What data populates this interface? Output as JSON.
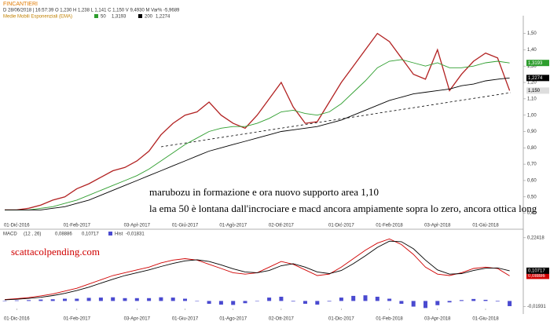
{
  "chart_data": [
    {
      "type": "line",
      "title": "FINCANTIERI",
      "subtitle": "D 28/06/2018 | 16:57:39   O 1,230   H 1,238   L 1,141   C 1,150   V 9,4930 M   Var% -5,9689",
      "legend_title": "Medie Mobili Esponenziali (EMA)",
      "categories": [
        null,
        "01-Dic-2016",
        null,
        null,
        null,
        null,
        "01-Feb-2017",
        null,
        null,
        null,
        null,
        "03-Apr-2017",
        null,
        null,
        null,
        "01-Giu-2017",
        null,
        null,
        null,
        "01-Ago-2017",
        null,
        null,
        null,
        "02-Ott-2017",
        null,
        null,
        null,
        null,
        "01-Dic-2017",
        null,
        null,
        null,
        "01-Feb-2018",
        null,
        null,
        null,
        "03-Apr-2018",
        null,
        null,
        null,
        "01-Giu-2018",
        null,
        null
      ],
      "series": [
        {
          "color": "#b22222",
          "last_label": "1,150",
          "values": [
            0.42,
            0.42,
            0.43,
            0.45,
            0.48,
            0.5,
            0.55,
            0.58,
            0.62,
            0.66,
            0.68,
            0.72,
            0.78,
            0.88,
            0.95,
            1.0,
            1.02,
            1.08,
            1.0,
            0.95,
            0.92,
            1.0,
            1.1,
            1.2,
            1.05,
            0.95,
            0.96,
            1.08,
            1.2,
            1.3,
            1.4,
            1.5,
            1.45,
            1.35,
            1.25,
            1.22,
            1.4,
            1.15,
            1.25,
            1.33,
            1.38,
            1.35,
            1.15
          ]
        },
        {
          "name": "50",
          "last_label": "1,3193",
          "color": "#2e9e2e",
          "values": [
            0.42,
            0.42,
            0.42,
            0.43,
            0.44,
            0.46,
            0.48,
            0.51,
            0.54,
            0.57,
            0.6,
            0.63,
            0.67,
            0.72,
            0.77,
            0.82,
            0.86,
            0.9,
            0.92,
            0.93,
            0.93,
            0.95,
            0.98,
            1.02,
            1.03,
            1.01,
            1.0,
            1.02,
            1.07,
            1.14,
            1.21,
            1.29,
            1.33,
            1.34,
            1.32,
            1.3,
            1.32,
            1.29,
            1.29,
            1.3,
            1.32,
            1.33,
            1.3193
          ]
        },
        {
          "name": "200",
          "last_label": "1,2274",
          "color": "#000000",
          "values": [
            0.42,
            0.42,
            0.42,
            0.42,
            0.43,
            0.44,
            0.46,
            0.48,
            0.51,
            0.54,
            0.57,
            0.6,
            0.63,
            0.66,
            0.69,
            0.72,
            0.75,
            0.78,
            0.8,
            0.82,
            0.84,
            0.86,
            0.88,
            0.9,
            0.91,
            0.92,
            0.93,
            0.95,
            0.97,
            1.0,
            1.03,
            1.06,
            1.09,
            1.11,
            1.13,
            1.14,
            1.15,
            1.16,
            1.18,
            1.19,
            1.21,
            1.22,
            1.2274
          ]
        }
      ],
      "ylim": [
        0.35,
        1.57
      ],
      "yticks": [
        {
          "value": 0.4,
          "label": "0,40"
        },
        {
          "value": 0.5,
          "label": "0,50"
        },
        {
          "value": 0.6,
          "label": "0,60"
        },
        {
          "value": 0.7,
          "label": "0,70"
        },
        {
          "value": 0.8,
          "label": "0,80"
        },
        {
          "value": 0.9,
          "label": "0,90"
        },
        {
          "value": 1.0,
          "label": "1,00"
        },
        {
          "value": 1.1,
          "label": "1,10"
        },
        {
          "value": 1.2,
          "label": "1,20"
        },
        {
          "value": 1.3,
          "label": "1,30"
        },
        {
          "value": 1.4,
          "label": "1,40"
        },
        {
          "value": 1.5,
          "label": "1,50"
        }
      ],
      "annotations": [
        "marubozu in formazione e ora nuovo supporto area 1,10",
        "la ema 50 è lontana dall'incrociare e macd ancora ampiamente sopra lo zero, ancora ottica long"
      ]
    },
    {
      "type": "line",
      "title": "MACD",
      "subtitle": "(12 , 26)",
      "categories": [
        null,
        "01-Dic-2016",
        null,
        null,
        null,
        null,
        "01-Feb-2017",
        null,
        null,
        null,
        null,
        "03-Apr-2017",
        null,
        null,
        null,
        "01-Giu-2017",
        null,
        null,
        null,
        "01-Ago-2017",
        null,
        null,
        null,
        "02-Ott-2017",
        null,
        null,
        null,
        null,
        "01-Dic-2017",
        null,
        null,
        null,
        "01-Feb-2018",
        null,
        null,
        null,
        "03-Apr-2018",
        null,
        null,
        null,
        "01-Giu-2018",
        null,
        null
      ],
      "series": [
        {
          "last_label": "0,08886",
          "color": "#d00000",
          "values": [
            0.005,
            0.008,
            0.012,
            0.018,
            0.025,
            0.035,
            0.045,
            0.06,
            0.075,
            0.09,
            0.1,
            0.11,
            0.12,
            0.135,
            0.145,
            0.15,
            0.145,
            0.13,
            0.115,
            0.1,
            0.095,
            0.1,
            0.12,
            0.14,
            0.13,
            0.11,
            0.09,
            0.095,
            0.12,
            0.15,
            0.18,
            0.205,
            0.22,
            0.2,
            0.165,
            0.12,
            0.095,
            0.09,
            0.1,
            0.115,
            0.12,
            0.115,
            0.08886
          ]
        },
        {
          "last_label": "0,10717",
          "color": "#000000",
          "values": [
            0.004,
            0.006,
            0.009,
            0.013,
            0.019,
            0.027,
            0.037,
            0.049,
            0.063,
            0.077,
            0.09,
            0.1,
            0.11,
            0.122,
            0.133,
            0.142,
            0.146,
            0.14,
            0.128,
            0.114,
            0.103,
            0.1,
            0.108,
            0.125,
            0.132,
            0.12,
            0.103,
            0.097,
            0.108,
            0.132,
            0.16,
            0.19,
            0.212,
            0.21,
            0.185,
            0.145,
            0.11,
            0.095,
            0.097,
            0.108,
            0.116,
            0.117,
            0.10717
          ]
        },
        {
          "name": "Hist",
          "type": "bar",
          "last_label": "-0,01831",
          "color": "#4a4ad0",
          "values": [
            0.001,
            0.002,
            0.003,
            0.005,
            0.006,
            0.008,
            0.008,
            0.011,
            0.012,
            0.013,
            0.01,
            0.01,
            0.01,
            0.013,
            0.012,
            0.008,
            -0.001,
            -0.01,
            -0.013,
            -0.014,
            -0.008,
            0,
            0.012,
            0.015,
            -0.002,
            -0.01,
            -0.013,
            -0.002,
            0.012,
            0.018,
            0.02,
            0.015,
            0.008,
            -0.01,
            -0.02,
            -0.025,
            -0.015,
            -0.005,
            0.003,
            0.007,
            0.004,
            -0.002,
            -0.01831
          ]
        }
      ],
      "ylim": [
        -0.024,
        0.232
      ],
      "yticks": [
        {
          "value": 0.22418,
          "label": "0,22418"
        },
        {
          "value": -0.01931,
          "label": "-0,01931"
        }
      ],
      "annotations": [
        "scattacolpending.com"
      ]
    }
  ]
}
